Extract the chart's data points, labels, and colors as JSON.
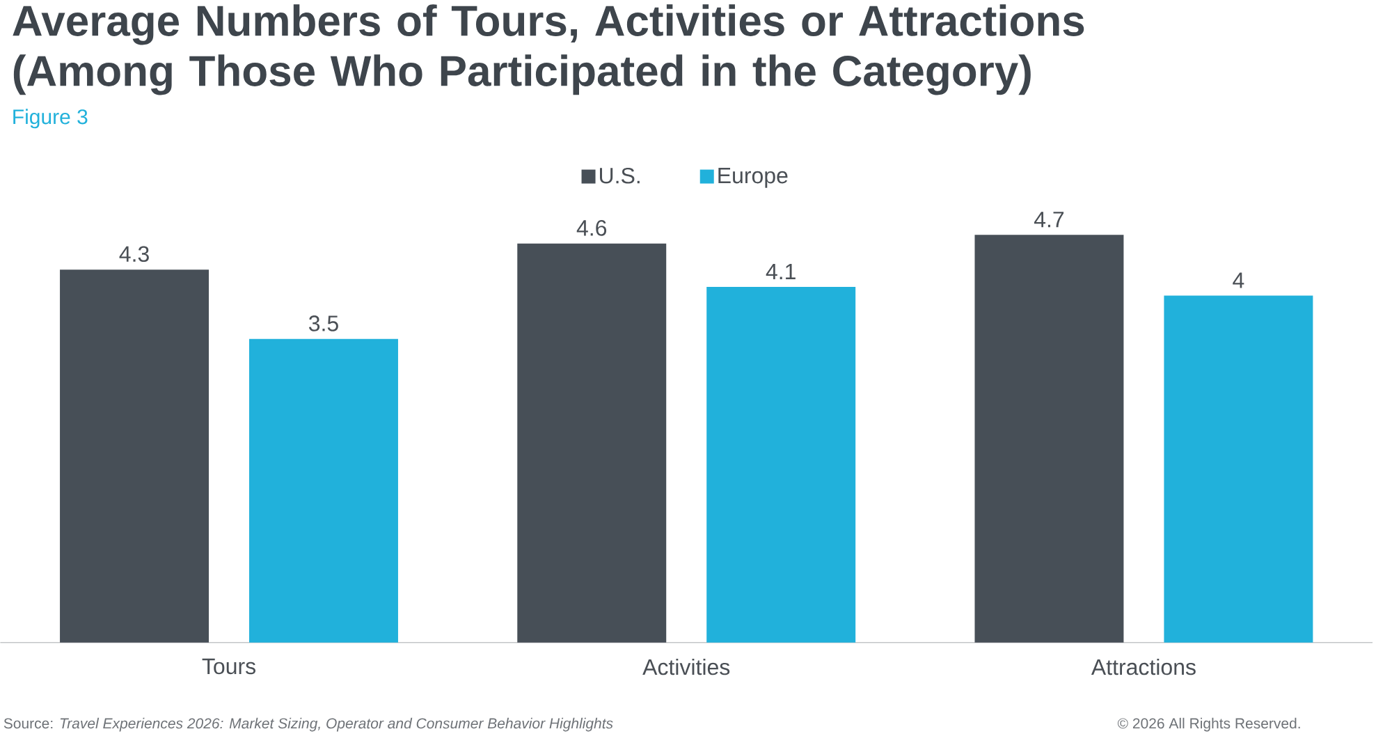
{
  "chart_data": {
    "type": "bar",
    "title": "Average Numbers of Tours, Activities or Attractions (Among Those Who Participated in the Category)",
    "subtitle": "Figure 3",
    "categories": [
      "Tours",
      "Activities",
      "Attractions"
    ],
    "series": [
      {
        "name": "U.S.",
        "color": "#474f57",
        "values": [
          4.3,
          4.6,
          4.7
        ]
      },
      {
        "name": "Europe",
        "color": "#21b1db",
        "values": [
          3.5,
          4.1,
          4
        ]
      }
    ],
    "data_labels": true,
    "legend": "top",
    "annotations": [
      "Source: *Travel Experiences 2026: Market Sizing, Operator and Consumer Behavior Highlights*",
      "© 2026 All Rights Reserved."
    ]
  }
}
